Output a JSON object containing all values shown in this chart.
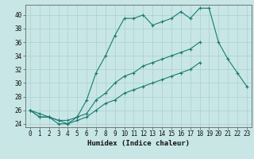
{
  "line1_x": [
    0,
    1,
    2,
    3,
    4,
    5,
    6,
    7,
    8,
    9,
    10,
    11,
    12,
    13,
    14,
    15,
    16,
    17,
    18,
    19,
    20,
    21,
    22,
    23
  ],
  "line1_y": [
    26,
    25,
    25,
    24,
    24,
    25,
    27.5,
    31.5,
    34,
    37,
    39.5,
    39.5,
    40,
    38.5,
    39,
    39.5,
    40.5,
    39.5,
    41,
    41,
    36,
    33.5,
    31.5,
    29.5
  ],
  "line2_x": [
    0,
    1,
    2,
    3,
    4,
    5,
    6,
    7,
    8,
    9,
    10,
    11,
    12,
    13,
    14,
    15,
    16,
    17,
    18
  ],
  "line2_y": [
    26,
    25,
    25,
    24.5,
    24.5,
    25,
    25.5,
    27.5,
    28.5,
    30,
    31,
    31.5,
    32.5,
    33,
    33.5,
    34,
    34.5,
    35,
    36
  ],
  "line3_x": [
    0,
    1,
    2,
    3,
    4,
    5,
    6,
    7,
    8,
    9,
    10,
    11,
    12,
    13,
    14,
    15,
    16,
    17,
    18,
    20,
    21,
    22,
    23
  ],
  "line3_y": [
    26,
    25.5,
    25,
    24.5,
    24,
    24.5,
    25,
    26,
    27,
    27.5,
    28.5,
    29,
    29.5,
    30,
    30.5,
    31,
    31.5,
    32,
    33,
    null,
    null,
    null,
    null
  ],
  "color": "#1a7a6e",
  "bg_color": "#c8e6e6",
  "grid_color": "#aad0d0",
  "xlabel": "Humidex (Indice chaleur)",
  "ylim": [
    23.5,
    41.5
  ],
  "xlim": [
    -0.5,
    23.5
  ],
  "yticks": [
    24,
    26,
    28,
    30,
    32,
    34,
    36,
    38,
    40
  ],
  "xticks": [
    0,
    1,
    2,
    3,
    4,
    5,
    6,
    7,
    8,
    9,
    10,
    11,
    12,
    13,
    14,
    15,
    16,
    17,
    18,
    19,
    20,
    21,
    22,
    23
  ],
  "xlabel_fontsize": 6.5,
  "tick_fontsize": 5.5,
  "lw": 0.8,
  "marker_size": 2.5
}
